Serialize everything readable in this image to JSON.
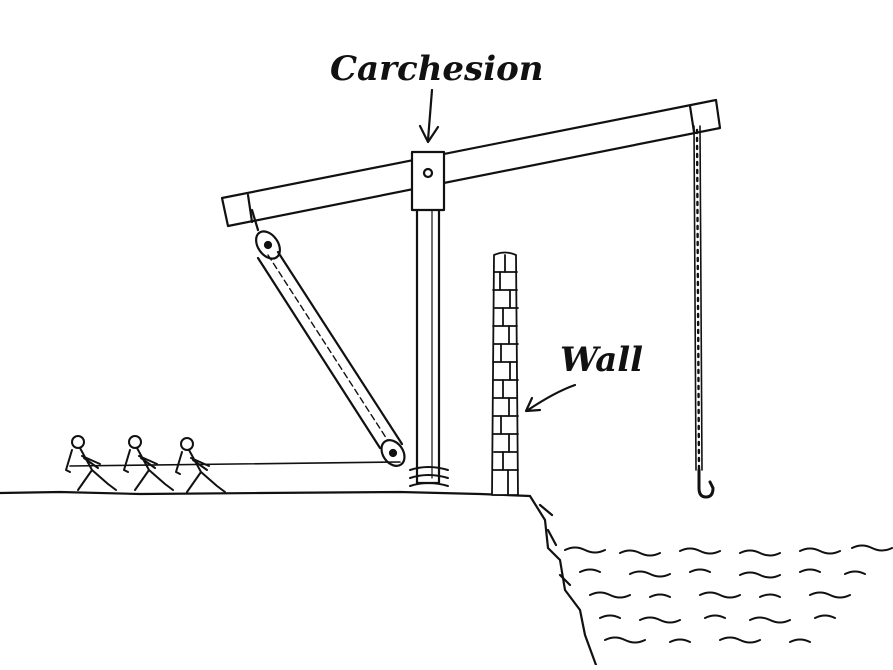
{
  "labels": {
    "carchesion": "Carchesion",
    "wall": "Wall"
  },
  "colors": {
    "ink": "#111111",
    "background": "#ffffff"
  }
}
